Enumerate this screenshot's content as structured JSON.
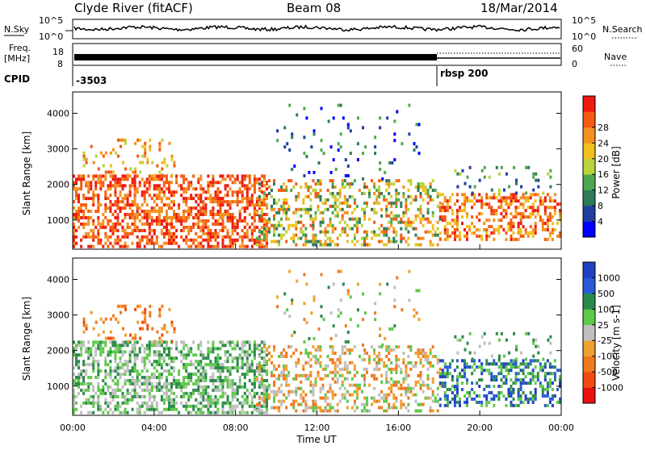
{
  "header": {
    "station": "Clyde River (fitACF)",
    "beam": "Beam 08",
    "date": "18/Mar/2014"
  },
  "strip_labels": {
    "nsky": "N.Sky",
    "nsearch": "N.Search",
    "freq_l1": "Freq.",
    "freq_l2": "[MHz]",
    "nave": "Nave",
    "cpid": "CPID"
  },
  "chart_data": [
    {
      "type": "line",
      "name": "noise",
      "yticks_left": [
        "10^5",
        "10^0"
      ],
      "yticks_right": [
        "10^5",
        "10^0"
      ]
    },
    {
      "type": "line",
      "name": "frequency",
      "yticks_left": [
        "18",
        "8"
      ],
      "yticks_right": [
        "60",
        "0"
      ],
      "cpid_segments": [
        {
          "start_ut": 0.0,
          "end_ut": 18.0,
          "label": "-3503"
        },
        {
          "start_ut": 18.0,
          "end_ut": 24.0,
          "label": "rbsp 200"
        }
      ]
    },
    {
      "type": "heatmap",
      "ylabel": "Slant Range [km]",
      "ylim": [
        180,
        4600
      ],
      "yticks": [
        "1000",
        "2000",
        "3000",
        "4000"
      ],
      "colorbar_label": "Power [dB]",
      "colorbar_ticks": [
        "4",
        "8",
        "12",
        "16",
        "20",
        "24",
        "28"
      ],
      "colors": [
        "#0000ff",
        "#1f3fa0",
        "#2e7a5a",
        "#4fa84f",
        "#b8d43a",
        "#f0c020",
        "#f49020",
        "#f45a10",
        "#ee1a10"
      ]
    },
    {
      "type": "heatmap",
      "ylabel": "Slant Range [km]",
      "xlabel": "Time UT",
      "ylim": [
        180,
        4600
      ],
      "xlim": [
        0,
        24
      ],
      "yticks": [
        "1000",
        "2000",
        "3000",
        "4000"
      ],
      "xticks": [
        "00:00",
        "04:00",
        "08:00",
        "12:00",
        "16:00",
        "20:00",
        "00:00"
      ],
      "colorbar_label": "Velocity [m s-1]",
      "colorbar_ticks": [
        "1000",
        "500",
        "100",
        "25",
        "-25",
        "-100",
        "-500",
        "-1000"
      ],
      "colors": [
        "#2040c0",
        "#2a5ad8",
        "#2a8a4a",
        "#5ec84a",
        "#bfbfbf",
        "#f0a030",
        "#f07820",
        "#f04a10",
        "#e81010"
      ]
    }
  ]
}
